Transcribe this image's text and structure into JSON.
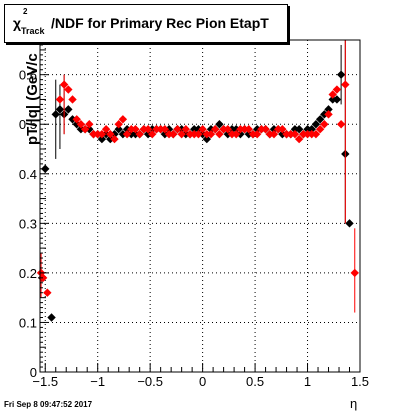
{
  "header": {
    "title_symbol": "χ",
    "title_sup": "2",
    "title_sub": "Track",
    "title_rest": "/NDF for Primary Rec Pion EtapT"
  },
  "footer": {
    "timestamp": "Fri Sep  8 09:47:52 2017"
  },
  "colors": {
    "series_black": "#000000",
    "series_red": "#ff0000",
    "frame": "#000000",
    "grid": "#000000"
  },
  "chart_data": {
    "type": "scatter",
    "title": "χ2Track/NDF for Primary Rec Pion EtapT",
    "xlabel": "η",
    "ylabel": "pT/|q| (GeV/c",
    "xlim": [
      -1.55,
      1.5
    ],
    "ylim": [
      0,
      0.67
    ],
    "grid": true,
    "x_ticks": [
      -1.5,
      -1,
      -0.5,
      0,
      0.5,
      1,
      1.5
    ],
    "x_tick_labels": [
      "−1.5",
      "−1",
      "−0.5",
      "0",
      "0.5",
      "1",
      "1.5"
    ],
    "y_ticks": [
      0,
      0.1,
      0.2,
      0.3,
      0.4,
      0.5,
      0.6
    ],
    "y_tick_labels": [
      "0",
      "0.1",
      "0.2",
      "0.3",
      "0.4",
      "0.5",
      "0.6"
    ],
    "series": [
      {
        "color": "#000000",
        "points": [
          [
            -1.53,
            0.19
          ],
          [
            -1.5,
            0.41
          ],
          [
            -1.44,
            0.11
          ],
          [
            -1.4,
            0.52
          ],
          [
            -1.36,
            0.53
          ],
          [
            -1.32,
            0.52
          ],
          [
            -1.28,
            0.53
          ],
          [
            -1.24,
            0.51
          ],
          [
            -1.2,
            0.5
          ],
          [
            -1.16,
            0.49
          ],
          [
            -1.12,
            0.49
          ],
          [
            -1.08,
            0.49
          ],
          [
            -1.04,
            0.48
          ],
          [
            -1.0,
            0.48
          ],
          [
            -0.96,
            0.47
          ],
          [
            -0.92,
            0.48
          ],
          [
            -0.88,
            0.47
          ],
          [
            -0.84,
            0.48
          ],
          [
            -0.8,
            0.49
          ],
          [
            -0.76,
            0.48
          ],
          [
            -0.72,
            0.49
          ],
          [
            -0.68,
            0.48
          ],
          [
            -0.64,
            0.48
          ],
          [
            -0.6,
            0.48
          ],
          [
            -0.56,
            0.49
          ],
          [
            -0.52,
            0.48
          ],
          [
            -0.48,
            0.49
          ],
          [
            -0.44,
            0.49
          ],
          [
            -0.4,
            0.49
          ],
          [
            -0.36,
            0.48
          ],
          [
            -0.32,
            0.49
          ],
          [
            -0.28,
            0.48
          ],
          [
            -0.24,
            0.49
          ],
          [
            -0.2,
            0.49
          ],
          [
            -0.16,
            0.48
          ],
          [
            -0.12,
            0.48
          ],
          [
            -0.08,
            0.49
          ],
          [
            -0.04,
            0.49
          ],
          [
            0.0,
            0.48
          ],
          [
            0.04,
            0.47
          ],
          [
            0.08,
            0.49
          ],
          [
            0.12,
            0.49
          ],
          [
            0.16,
            0.5
          ],
          [
            0.2,
            0.49
          ],
          [
            0.24,
            0.48
          ],
          [
            0.28,
            0.49
          ],
          [
            0.32,
            0.49
          ],
          [
            0.36,
            0.48
          ],
          [
            0.4,
            0.49
          ],
          [
            0.44,
            0.48
          ],
          [
            0.48,
            0.48
          ],
          [
            0.52,
            0.49
          ],
          [
            0.56,
            0.49
          ],
          [
            0.6,
            0.49
          ],
          [
            0.64,
            0.48
          ],
          [
            0.68,
            0.49
          ],
          [
            0.72,
            0.49
          ],
          [
            0.76,
            0.48
          ],
          [
            0.8,
            0.48
          ],
          [
            0.84,
            0.48
          ],
          [
            0.88,
            0.49
          ],
          [
            0.92,
            0.49
          ],
          [
            0.96,
            0.48
          ],
          [
            1.0,
            0.49
          ],
          [
            1.04,
            0.49
          ],
          [
            1.08,
            0.5
          ],
          [
            1.12,
            0.51
          ],
          [
            1.16,
            0.52
          ],
          [
            1.2,
            0.53
          ],
          [
            1.24,
            0.55
          ],
          [
            1.28,
            0.55
          ],
          [
            1.32,
            0.6
          ],
          [
            1.36,
            0.44
          ],
          [
            1.4,
            0.3
          ]
        ]
      },
      {
        "color": "#ff0000",
        "points": [
          [
            -1.54,
            0.2
          ],
          [
            -1.52,
            0.19
          ],
          [
            -1.48,
            0.16
          ],
          [
            -1.36,
            0.55
          ],
          [
            -1.32,
            0.58
          ],
          [
            -1.28,
            0.57
          ],
          [
            -1.24,
            0.55
          ],
          [
            -1.2,
            0.51
          ],
          [
            -1.16,
            0.5
          ],
          [
            -1.12,
            0.49
          ],
          [
            -1.08,
            0.5
          ],
          [
            -1.04,
            0.48
          ],
          [
            -1.0,
            0.48
          ],
          [
            -0.96,
            0.48
          ],
          [
            -0.92,
            0.49
          ],
          [
            -0.88,
            0.48
          ],
          [
            -0.84,
            0.47
          ],
          [
            -0.8,
            0.5
          ],
          [
            -0.76,
            0.51
          ],
          [
            -0.72,
            0.48
          ],
          [
            -0.68,
            0.49
          ],
          [
            -0.64,
            0.49
          ],
          [
            -0.6,
            0.48
          ],
          [
            -0.56,
            0.49
          ],
          [
            -0.52,
            0.49
          ],
          [
            -0.48,
            0.48
          ],
          [
            -0.44,
            0.49
          ],
          [
            -0.4,
            0.49
          ],
          [
            -0.36,
            0.49
          ],
          [
            -0.32,
            0.48
          ],
          [
            -0.28,
            0.48
          ],
          [
            -0.24,
            0.49
          ],
          [
            -0.2,
            0.48
          ],
          [
            -0.16,
            0.49
          ],
          [
            -0.12,
            0.48
          ],
          [
            -0.08,
            0.48
          ],
          [
            -0.04,
            0.48
          ],
          [
            0.0,
            0.49
          ],
          [
            0.04,
            0.48
          ],
          [
            0.08,
            0.48
          ],
          [
            0.12,
            0.49
          ],
          [
            0.16,
            0.48
          ],
          [
            0.2,
            0.49
          ],
          [
            0.24,
            0.49
          ],
          [
            0.28,
            0.48
          ],
          [
            0.32,
            0.48
          ],
          [
            0.36,
            0.49
          ],
          [
            0.4,
            0.49
          ],
          [
            0.44,
            0.49
          ],
          [
            0.48,
            0.48
          ],
          [
            0.52,
            0.48
          ],
          [
            0.56,
            0.49
          ],
          [
            0.6,
            0.49
          ],
          [
            0.64,
            0.48
          ],
          [
            0.68,
            0.48
          ],
          [
            0.72,
            0.49
          ],
          [
            0.76,
            0.49
          ],
          [
            0.8,
            0.48
          ],
          [
            0.84,
            0.48
          ],
          [
            0.88,
            0.48
          ],
          [
            0.92,
            0.47
          ],
          [
            0.96,
            0.48
          ],
          [
            1.0,
            0.48
          ],
          [
            1.04,
            0.48
          ],
          [
            1.08,
            0.48
          ],
          [
            1.12,
            0.49
          ],
          [
            1.16,
            0.5
          ],
          [
            1.2,
            0.52
          ],
          [
            1.24,
            0.56
          ],
          [
            1.28,
            0.57
          ],
          [
            1.32,
            0.5
          ],
          [
            1.36,
            0.58
          ],
          [
            1.45,
            0.2
          ]
        ]
      }
    ]
  }
}
